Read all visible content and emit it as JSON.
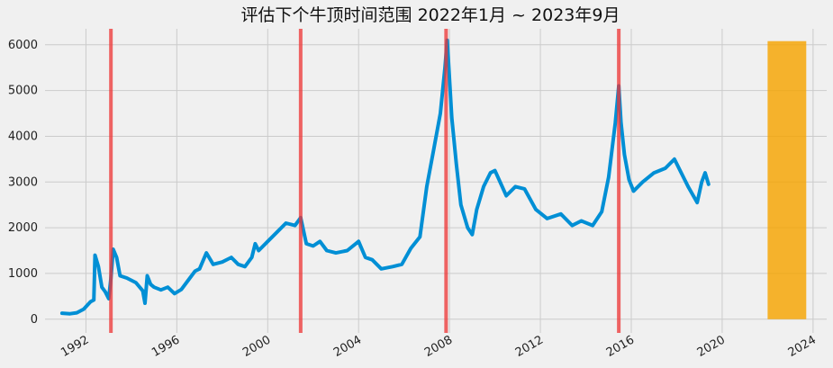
{
  "chart_data": {
    "type": "line",
    "title": "评估下个牛顶时间范围 2022年1月 ~ 2023年9月",
    "xlabel": "",
    "ylabel": "",
    "x_range": [
      1990.2,
      2024.6
    ],
    "ylim": [
      -300,
      6350
    ],
    "grid": true,
    "y_ticks": [
      0,
      1000,
      2000,
      3000,
      4000,
      5000,
      6000
    ],
    "x_ticks": [
      1992,
      1996,
      2000,
      2004,
      2008,
      2012,
      2016,
      2020,
      2024
    ],
    "colors": {
      "series": "#008fd5",
      "peak_lines": "#ee3333",
      "forecast_band": "#f5a300",
      "background": "#f0f0f0",
      "grid": "#cbcbcb"
    },
    "series": [
      {
        "x": [
          1990.95,
          1991.3,
          1991.6,
          1991.9,
          1992.2,
          1992.35,
          1992.4,
          1992.55,
          1992.7,
          1992.85,
          1993.0,
          1993.1,
          1993.2,
          1993.35,
          1993.5,
          1993.8,
          1994.2,
          1994.5,
          1994.6,
          1994.7,
          1994.85,
          1995.0,
          1995.3,
          1995.6,
          1995.9,
          1996.2,
          1996.5,
          1996.8,
          1997.0,
          1997.3,
          1997.6,
          1998.0,
          1998.4,
          1998.7,
          1999.0,
          1999.3,
          1999.45,
          1999.6,
          2000.0,
          2000.4,
          2000.8,
          2001.2,
          2001.45,
          2001.7,
          2002.0,
          2002.3,
          2002.6,
          2003.0,
          2003.5,
          2004.0,
          2004.3,
          2004.6,
          2005.0,
          2005.5,
          2005.9,
          2006.3,
          2006.7,
          2007.0,
          2007.3,
          2007.6,
          2007.8,
          2007.9,
          2008.1,
          2008.3,
          2008.5,
          2008.8,
          2009.0,
          2009.2,
          2009.5,
          2009.8,
          2010.0,
          2010.5,
          2010.9,
          2011.3,
          2011.8,
          2012.3,
          2012.9,
          2013.4,
          2013.8,
          2014.3,
          2014.7,
          2015.0,
          2015.3,
          2015.45,
          2015.55,
          2015.7,
          2015.9,
          2016.1,
          2016.5,
          2017.0,
          2017.5,
          2017.9,
          2018.2,
          2018.5,
          2018.9,
          2019.1,
          2019.25,
          2019.4
        ],
        "values": [
          130,
          120,
          140,
          220,
          380,
          420,
          1400,
          1150,
          700,
          600,
          450,
          900,
          1530,
          1350,
          950,
          900,
          800,
          620,
          350,
          950,
          760,
          700,
          640,
          700,
          560,
          650,
          850,
          1050,
          1100,
          1450,
          1200,
          1250,
          1350,
          1200,
          1150,
          1350,
          1650,
          1500,
          1700,
          1900,
          2100,
          2050,
          2220,
          1650,
          1600,
          1700,
          1500,
          1450,
          1500,
          1700,
          1350,
          1300,
          1100,
          1150,
          1200,
          1550,
          1800,
          2900,
          3700,
          4500,
          5500,
          6100,
          4400,
          3400,
          2500,
          2000,
          1850,
          2400,
          2900,
          3200,
          3250,
          2700,
          2900,
          2850,
          2400,
          2200,
          2300,
          2050,
          2150,
          2050,
          2350,
          3100,
          4300,
          5100,
          4300,
          3600,
          3050,
          2800,
          3000,
          3200,
          3300,
          3500,
          3200,
          2900,
          2550,
          3000,
          3200,
          2950
        ]
      }
    ],
    "vertical_lines_x": [
      1993.1,
      2001.45,
      2007.85,
      2015.45
    ],
    "forecast_range": {
      "x": [
        2022.0,
        2023.7
      ],
      "y": [
        0,
        6080
      ]
    }
  }
}
